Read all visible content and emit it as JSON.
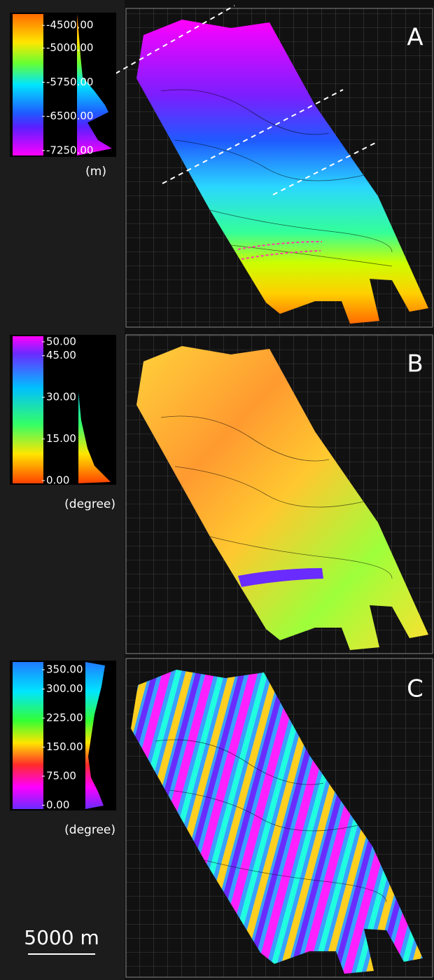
{
  "panels": [
    {
      "label": "A",
      "colorbar": {
        "lim": [
          -7360,
          -4250
        ],
        "ticks": [
          {
            "value": -4500,
            "label": "-4500.00"
          },
          {
            "value": -5000,
            "label": "-5000.00"
          },
          {
            "value": -5750,
            "label": "-5750.00"
          },
          {
            "value": -6500,
            "label": "-6500.00"
          },
          {
            "value": -7250,
            "label": "-7250.00"
          }
        ],
        "unit": "(m)"
      }
    },
    {
      "label": "B",
      "colorbar": {
        "lim": [
          -1,
          52
        ],
        "ticks": [
          {
            "value": 50,
            "label": "50.00"
          },
          {
            "value": 45,
            "label": "45.00"
          },
          {
            "value": 30,
            "label": "30.00"
          },
          {
            "value": 15,
            "label": "15.00"
          },
          {
            "value": 0,
            "label": "0.00"
          }
        ],
        "unit": "(degree)"
      }
    },
    {
      "label": "C",
      "colorbar": {
        "lim": [
          -10,
          370
        ],
        "ticks": [
          {
            "value": 350,
            "label": "350.00"
          },
          {
            "value": 300,
            "label": "300.00"
          },
          {
            "value": 225,
            "label": "225.00"
          },
          {
            "value": 150,
            "label": "150.00"
          },
          {
            "value": 75,
            "label": "75.00"
          },
          {
            "value": 0,
            "label": "0.00"
          }
        ],
        "unit": "(degree)"
      }
    }
  ],
  "scale_bar": "5000 m"
}
